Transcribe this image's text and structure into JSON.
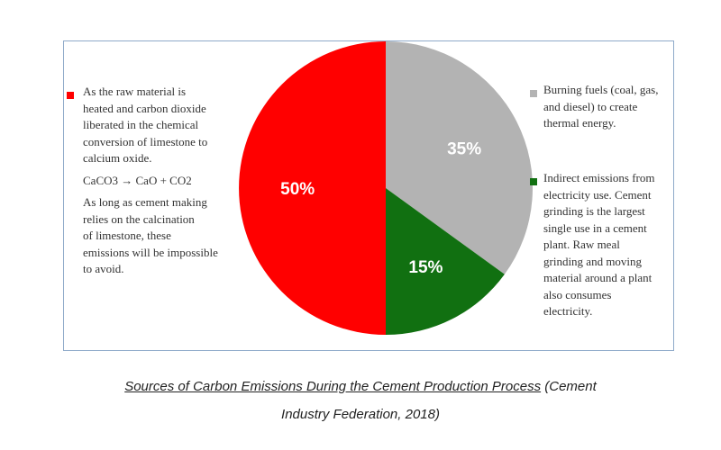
{
  "chart_data": {
    "type": "pie",
    "slices": [
      {
        "name": "As the raw material is heated and carbon dioxide liberated in the chemical conversion of limestone to calcium oxide.",
        "value": 50,
        "label": "50%",
        "color": "#ff0000"
      },
      {
        "name": "Burning fuels (coal, gas, and diesel) to create thermal energy.",
        "value": 35,
        "label": "35%",
        "color": "#b3b3b3"
      },
      {
        "name": "Indirect emissions from electricity use. Cement grinding is the largest single use in a cement plant. Raw meal grinding and moving material around a plant also consumes electricity.",
        "value": 15,
        "label": "15%",
        "color": "#117011"
      }
    ]
  },
  "legend": {
    "left": {
      "lines": [
        "As the raw material is",
        "heated and carbon dioxide",
        "liberated in the chemical",
        "conversion of limestone to",
        "calcium oxide."
      ],
      "formula": "CaCO3 → CaO  +  CO2",
      "note_lines": [
        "As long as cement making",
        "relies on the calcination",
        "of limestone, these",
        "emissions will be impossible",
        "to avoid."
      ]
    },
    "right_top": {
      "lines": [
        "Burning fuels (coal, gas,",
        "and diesel) to create",
        "thermal energy."
      ]
    },
    "right_bottom": {
      "lines": [
        "Indirect emissions from",
        "electricity use. Cement",
        "grinding is the largest",
        "single use in a cement",
        "plant. Raw meal",
        "grinding and moving",
        "material around a plant",
        "also consumes",
        "electricity."
      ]
    }
  },
  "caption": {
    "source_title": "Sources of Carbon Emissions During the Cement Production Process",
    "citation_start": " (Cement",
    "citation_end": "Industry Federation, 2018)"
  }
}
